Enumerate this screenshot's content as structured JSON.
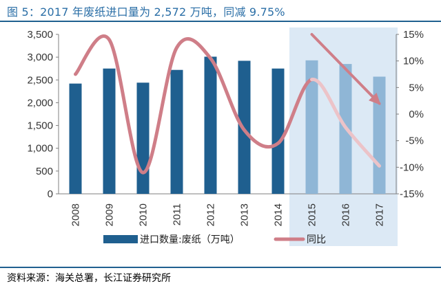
{
  "header": {
    "title": "图 5：2017 年废纸进口量为 2,572 万吨，同减 9.75%"
  },
  "footer": {
    "source": "资料来源：海关总署，长江证券研究所"
  },
  "chart_data": {
    "type": "bar",
    "categories": [
      "2008",
      "2009",
      "2010",
      "2011",
      "2012",
      "2013",
      "2014",
      "2015",
      "2016",
      "2017"
    ],
    "highlighted_categories": [
      "2015",
      "2016",
      "2017"
    ],
    "series": [
      {
        "name": "进口数量:废纸（万吨）",
        "type": "bar",
        "axis": "left",
        "color": "#1f5f8f",
        "values": [
          2420,
          2750,
          2440,
          2720,
          3010,
          2920,
          2750,
          2930,
          2850,
          2572
        ]
      },
      {
        "name": "同比",
        "type": "line",
        "axis": "right",
        "color": "#cf7e88",
        "values": [
          7.5,
          14.0,
          -11.0,
          12.5,
          10.5,
          -3.0,
          -5.5,
          6.5,
          -2.5,
          -9.75
        ]
      }
    ],
    "trend_arrows": [
      {
        "from": {
          "x": "2015",
          "y": 15
        },
        "to": {
          "x": "2017",
          "y": 2
        },
        "color": "#cf7e88"
      }
    ],
    "y_left": {
      "range": [
        0,
        3500
      ],
      "ticks": [
        0,
        500,
        1000,
        1500,
        2000,
        2500,
        3000,
        3500
      ],
      "tick_labels": [
        "0",
        "500",
        "1,000",
        "1,500",
        "2,000",
        "2,500",
        "3,000",
        "3,500"
      ]
    },
    "y_right": {
      "range": [
        -15,
        15
      ],
      "ticks": [
        -15,
        -10,
        -5,
        0,
        5,
        10,
        15
      ],
      "tick_labels": [
        "-15%",
        "-10%",
        "-5%",
        "0%",
        "5%",
        "10%",
        "15%"
      ]
    },
    "legend": {
      "placement": "bottom",
      "entries": [
        "进口数量:废纸（万吨）",
        "同比"
      ]
    },
    "grid": false
  }
}
